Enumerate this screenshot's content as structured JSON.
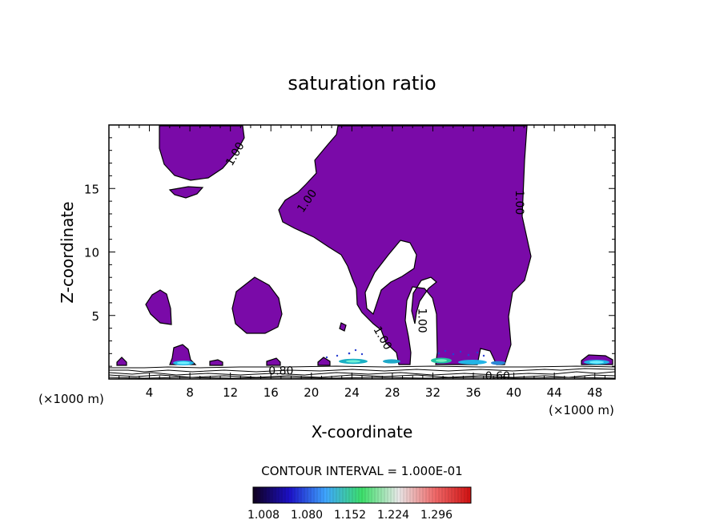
{
  "chart_data": {
    "type": "contour",
    "title": "saturation ratio",
    "xlabel": "X-coordinate",
    "ylabel": "Z-coordinate",
    "x_unit_left": "(×1000 m)",
    "x_unit_right": "(×1000 m)",
    "xlim": [
      0,
      50
    ],
    "ylim": [
      0,
      20
    ],
    "x_ticks": [
      4,
      8,
      12,
      16,
      20,
      24,
      28,
      32,
      36,
      40,
      44,
      48
    ],
    "y_ticks": [
      5,
      10,
      15
    ],
    "fill_color": "#7a0aa8",
    "contour_labels": [
      {
        "text": "1.00",
        "x": 12.5,
        "y": 17.7,
        "angle": -60
      },
      {
        "text": "1.00",
        "x": 19.6,
        "y": 14.0,
        "angle": -55
      },
      {
        "text": "1.00",
        "x": 40.5,
        "y": 13.9,
        "angle": 90
      },
      {
        "text": "1.00",
        "x": 30.9,
        "y": 4.6,
        "angle": 90
      },
      {
        "text": "1.00",
        "x": 27.0,
        "y": 3.2,
        "angle": 60
      },
      {
        "text": "0.80",
        "x": 17.0,
        "y": 0.6,
        "angle": 0
      },
      {
        "text": "0.60",
        "x": 38.4,
        "y": 0.2,
        "angle": 0
      }
    ],
    "supersaturated_regions": [
      {
        "x": [
          5.0,
          13.5
        ],
        "y": [
          14.0,
          20.0
        ]
      },
      {
        "x": [
          6.8,
          9.8
        ],
        "y": [
          14.6,
          15.3
        ]
      },
      {
        "x": [
          3.7,
          6.2
        ],
        "y": [
          4.3,
          7.2
        ]
      },
      {
        "x": [
          12.2,
          17.0
        ],
        "y": [
          3.5,
          8.1
        ]
      },
      {
        "x": [
          16.9,
          41.2
        ],
        "y": [
          1.2,
          20.0
        ]
      },
      {
        "x": [
          6.2,
          8.4
        ],
        "y": [
          1.0,
          2.6
        ]
      },
      {
        "x": [
          46.0,
          49.8
        ],
        "y": [
          1.0,
          1.8
        ]
      }
    ],
    "colorbar": {
      "ticks": [
        "1.008",
        "1.080",
        "1.152",
        "1.224",
        "1.296"
      ],
      "colors": [
        "#10001e",
        "#1c10c8",
        "#3fa7ff",
        "#3ce06a",
        "#e8e8e8",
        "#f06a6a",
        "#d01010"
      ]
    },
    "contour_interval_text": "CONTOUR INTERVAL = 1.000E-01"
  }
}
